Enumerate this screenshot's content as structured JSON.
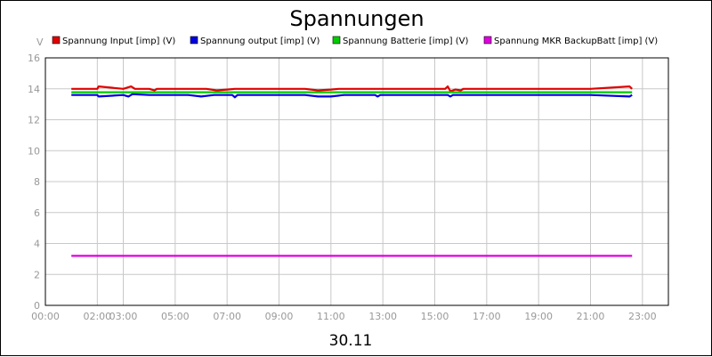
{
  "chart_data": {
    "type": "line",
    "title": "Spannungen",
    "xlabel": "30.11",
    "ylabel": "V",
    "ylim": [
      0,
      16
    ],
    "y_ticks": [
      0,
      2,
      4,
      6,
      8,
      10,
      12,
      14,
      16
    ],
    "xlim": [
      0,
      24
    ],
    "x_ticks": [
      {
        "label": "00:00",
        "value": 0.0
      },
      {
        "label": "02:00",
        "value": 2.0
      },
      {
        "label": "03:00",
        "value": 3.0
      },
      {
        "label": "05:00",
        "value": 5.0
      },
      {
        "label": "07:00",
        "value": 7.0
      },
      {
        "label": "09:00",
        "value": 9.0
      },
      {
        "label": "11:00",
        "value": 11.0
      },
      {
        "label": "13:00",
        "value": 13.0
      },
      {
        "label": "15:00",
        "value": 15.0
      },
      {
        "label": "17:00",
        "value": 17.0
      },
      {
        "label": "19:00",
        "value": 19.0
      },
      {
        "label": "21:00",
        "value": 21.0
      },
      {
        "label": "23:00",
        "value": 23.0
      }
    ],
    "grid": true,
    "legend_position": "top",
    "series": [
      {
        "name": "Spannung Input [imp] (V)",
        "color": "#e00000",
        "x": [
          1.0,
          2.0,
          2.05,
          3.0,
          3.3,
          3.45,
          4.0,
          4.2,
          4.3,
          6.2,
          6.6,
          7.0,
          7.3,
          10.0,
          10.5,
          11.0,
          11.3,
          15.4,
          15.5,
          15.6,
          15.8,
          16.0,
          16.1,
          16.2,
          21.0,
          22.5,
          22.6
        ],
        "values": [
          14.0,
          14.0,
          14.15,
          14.0,
          14.15,
          14.0,
          14.0,
          13.9,
          14.0,
          14.0,
          13.9,
          13.95,
          14.0,
          14.0,
          13.9,
          13.95,
          14.0,
          14.0,
          14.15,
          13.85,
          13.95,
          13.9,
          14.0,
          14.0,
          14.0,
          14.15,
          14.0
        ]
      },
      {
        "name": "Spannung output [imp] (V)",
        "color": "#0000e0",
        "x": [
          1.0,
          2.0,
          2.05,
          3.0,
          3.2,
          3.35,
          4.0,
          5.5,
          6.0,
          6.5,
          7.2,
          7.3,
          7.4,
          10.0,
          10.5,
          11.0,
          11.5,
          12.7,
          12.8,
          12.9,
          15.5,
          15.6,
          15.7,
          21.0,
          22.5,
          22.6
        ],
        "values": [
          13.6,
          13.6,
          13.5,
          13.6,
          13.5,
          13.65,
          13.6,
          13.6,
          13.5,
          13.6,
          13.6,
          13.45,
          13.6,
          13.6,
          13.5,
          13.5,
          13.6,
          13.6,
          13.5,
          13.6,
          13.6,
          13.5,
          13.6,
          13.6,
          13.5,
          13.6
        ]
      },
      {
        "name": "Spannung Batterie [imp] (V)",
        "color": "#00cc00",
        "x": [
          1.0,
          22.6
        ],
        "values": [
          13.78,
          13.78
        ]
      },
      {
        "name": "Spannung MKR BackupBatt [imp] (V)",
        "color": "#e000e0",
        "x": [
          1.0,
          22.6
        ],
        "values": [
          3.2,
          3.2
        ]
      }
    ]
  }
}
